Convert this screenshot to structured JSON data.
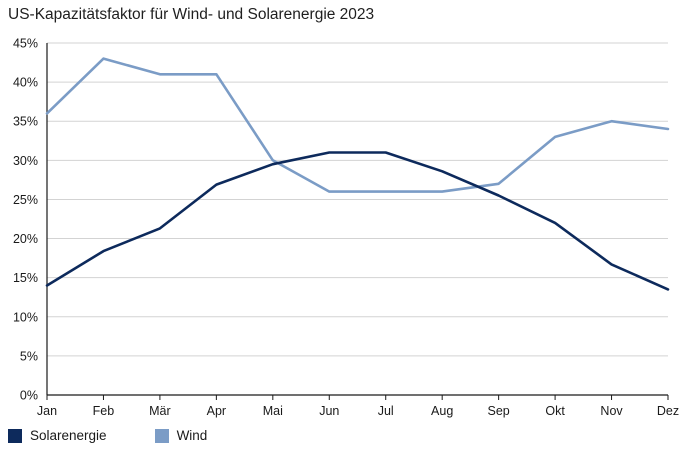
{
  "chart_data": {
    "type": "line",
    "title": "US-Kapazitätsfaktor für Wind- und Solarenergie 2023",
    "categories": [
      "Jan",
      "Feb",
      "Mär",
      "Apr",
      "Mai",
      "Jun",
      "Jul",
      "Aug",
      "Sep",
      "Okt",
      "Nov",
      "Dez"
    ],
    "y_ticks": [
      "0%",
      "5%",
      "10%",
      "15%",
      "20%",
      "25%",
      "30%",
      "35%",
      "40%",
      "45%"
    ],
    "ylim": [
      0,
      45
    ],
    "grid": true,
    "legend_position": "bottom-left",
    "series": [
      {
        "name": "Solarenergie",
        "color": "#0d2a5c",
        "values": [
          14,
          18.4,
          21.3,
          26.9,
          29.5,
          31,
          31,
          28.6,
          25.5,
          22,
          16.7,
          13.5
        ]
      },
      {
        "name": "Wind",
        "color": "#7b9cc6",
        "values": [
          36,
          43,
          41,
          41,
          30,
          26,
          26,
          26,
          27,
          33,
          35,
          34
        ]
      }
    ]
  }
}
